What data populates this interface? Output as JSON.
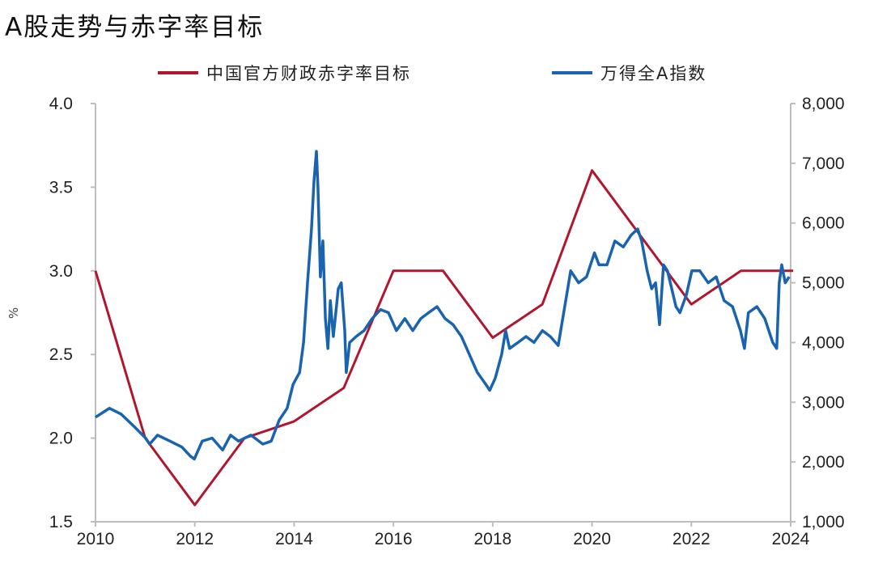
{
  "title": "A股走势与赤字率目标",
  "chart_data": {
    "type": "line",
    "title": "A股走势与赤字率目标",
    "xlabel": "",
    "ylabel": "%",
    "xlim": [
      2010,
      2024
    ],
    "x_ticks": [
      "2010",
      "2012",
      "2014",
      "2016",
      "2018",
      "2020",
      "2022",
      "2024"
    ],
    "y_left_lim": [
      1.5,
      4.0
    ],
    "y_left_ticks": [
      "4.0",
      "3.5",
      "3.0",
      "2.5",
      "2.0",
      "1.5"
    ],
    "y_right_lim": [
      1000,
      8000
    ],
    "y_right_ticks": [
      "8,000",
      "7,000",
      "6,000",
      "5,000",
      "4,000",
      "3,000",
      "2,000",
      "1,000"
    ],
    "grid": false,
    "legend_position": "top",
    "series": [
      {
        "name": "中国官方财政赤字率目标",
        "axis": "left",
        "color": "#B0172F",
        "x": [
          2010,
          2011,
          2012,
          2013,
          2014,
          2015,
          2016,
          2017,
          2018,
          2019,
          2020,
          2021,
          2022,
          2023,
          2024.05
        ],
        "y": [
          3.0,
          2.0,
          1.6,
          2.0,
          2.1,
          2.3,
          3.0,
          3.0,
          2.6,
          2.8,
          3.6,
          3.2,
          2.8,
          3.0,
          3.0
        ]
      },
      {
        "name": "万得全A指数",
        "axis": "right",
        "color": "#1A63AE",
        "x": [
          2010.0,
          2010.28,
          2010.52,
          2010.77,
          2011.01,
          2011.09,
          2011.25,
          2011.5,
          2011.74,
          2011.91,
          2011.99,
          2012.15,
          2012.35,
          2012.56,
          2012.72,
          2012.88,
          2013.13,
          2013.37,
          2013.54,
          2013.7,
          2013.86,
          2013.98,
          2014.11,
          2014.19,
          2014.27,
          2014.35,
          2014.4,
          2014.45,
          2014.48,
          2014.53,
          2014.58,
          2014.63,
          2014.68,
          2014.73,
          2014.79,
          2014.89,
          2014.95,
          2015.02,
          2015.05,
          2015.12,
          2015.25,
          2015.41,
          2015.57,
          2015.74,
          2015.9,
          2016.06,
          2016.23,
          2016.39,
          2016.55,
          2016.71,
          2016.88,
          2017.04,
          2017.2,
          2017.37,
          2017.53,
          2017.69,
          2017.86,
          2017.94,
          2018.05,
          2018.18,
          2018.26,
          2018.34,
          2018.51,
          2018.67,
          2018.83,
          2019.0,
          2019.16,
          2019.32,
          2019.49,
          2019.57,
          2019.73,
          2019.89,
          2020.05,
          2020.14,
          2020.3,
          2020.46,
          2020.63,
          2020.79,
          2020.92,
          2021.0,
          2021.11,
          2021.2,
          2021.28,
          2021.36,
          2021.44,
          2021.52,
          2021.69,
          2021.77,
          2021.9,
          2022.01,
          2022.17,
          2022.34,
          2022.5,
          2022.66,
          2022.83,
          2022.99,
          2023.07,
          2023.15,
          2023.32,
          2023.48,
          2023.64,
          2023.72,
          2023.77,
          2023.82,
          2023.89,
          2023.97
        ],
        "y": [
          2750,
          2900,
          2800,
          2600,
          2400,
          2300,
          2450,
          2350,
          2250,
          2100,
          2050,
          2350,
          2400,
          2200,
          2450,
          2350,
          2450,
          2300,
          2350,
          2700,
          2900,
          3300,
          3500,
          4000,
          5000,
          5900,
          6700,
          7200,
          6600,
          5100,
          5700,
          4400,
          3900,
          4700,
          4100,
          4900,
          5000,
          4200,
          3500,
          4000,
          4100,
          4200,
          4400,
          4550,
          4500,
          4200,
          4400,
          4200,
          4400,
          4500,
          4600,
          4400,
          4300,
          4100,
          3800,
          3500,
          3300,
          3200,
          3400,
          3800,
          4200,
          3900,
          4000,
          4100,
          4000,
          4200,
          4100,
          3950,
          4800,
          5200,
          5000,
          5100,
          5500,
          5300,
          5300,
          5700,
          5600,
          5800,
          5900,
          5700,
          5200,
          4900,
          5000,
          4300,
          5300,
          5200,
          4600,
          4500,
          4800,
          5200,
          5200,
          5000,
          5100,
          4700,
          4600,
          4200,
          3900,
          4500,
          4600,
          4400,
          4000,
          3900,
          5000,
          5300,
          5000,
          5100
        ]
      }
    ]
  }
}
